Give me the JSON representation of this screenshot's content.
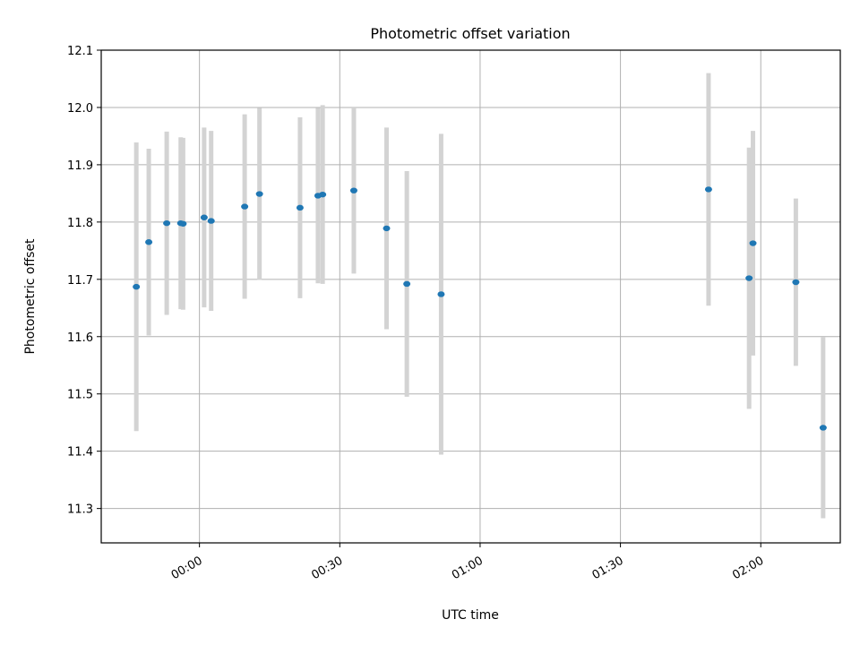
{
  "chart_data": {
    "type": "scatter",
    "title": "Photometric offset variation",
    "xlabel": "UTC time",
    "ylabel": "Photometric offset",
    "xlim": [
      "23:39",
      "02:17"
    ],
    "ylim": [
      11.24,
      12.1
    ],
    "grid": true,
    "colors": {
      "point": "#1f77b4",
      "errorbar": "#d3d3d3",
      "grid": "#b0b0b0"
    },
    "x_ticks": [
      "00:00",
      "00:30",
      "01:00",
      "01:30",
      "02:00"
    ],
    "y_ticks": [
      "11.3",
      "11.4",
      "11.5",
      "11.6",
      "11.7",
      "11.8",
      "11.9",
      "12.0",
      "12.1"
    ],
    "points": [
      {
        "x": "23:46:30",
        "y": 11.687,
        "yerr": 0.252
      },
      {
        "x": "23:49:10",
        "y": 11.765,
        "yerr": 0.163
      },
      {
        "x": "23:53:00",
        "y": 11.798,
        "yerr": 0.16
      },
      {
        "x": "23:56:00",
        "y": 11.798,
        "yerr": 0.15
      },
      {
        "x": "23:56:30",
        "y": 11.797,
        "yerr": 0.15
      },
      {
        "x": "24:01:00",
        "y": 11.808,
        "yerr": 0.157
      },
      {
        "x": "24:02:30",
        "y": 11.802,
        "yerr": 0.157
      },
      {
        "x": "24:09:40",
        "y": 11.827,
        "yerr": 0.161
      },
      {
        "x": "24:12:50",
        "y": 11.849,
        "yerr": 0.15
      },
      {
        "x": "24:21:30",
        "y": 11.825,
        "yerr": 0.158
      },
      {
        "x": "24:25:20",
        "y": 11.846,
        "yerr": 0.153
      },
      {
        "x": "24:26:20",
        "y": 11.848,
        "yerr": 0.156
      },
      {
        "x": "24:33:00",
        "y": 11.855,
        "yerr": 0.145
      },
      {
        "x": "24:40:00",
        "y": 11.789,
        "yerr": 0.176
      },
      {
        "x": "24:44:20",
        "y": 11.692,
        "yerr": 0.197
      },
      {
        "x": "24:51:40",
        "y": 11.674,
        "yerr": 0.28
      },
      {
        "x": "25:48:50",
        "y": 11.857,
        "yerr": 0.203
      },
      {
        "x": "25:57:30",
        "y": 11.702,
        "yerr": 0.228
      },
      {
        "x": "25:58:20",
        "y": 11.763,
        "yerr": 0.196
      },
      {
        "x": "26:07:30",
        "y": 11.695,
        "yerr": 0.146
      },
      {
        "x": "26:13:20",
        "y": 11.441,
        "yerr": 0.158
      }
    ]
  }
}
